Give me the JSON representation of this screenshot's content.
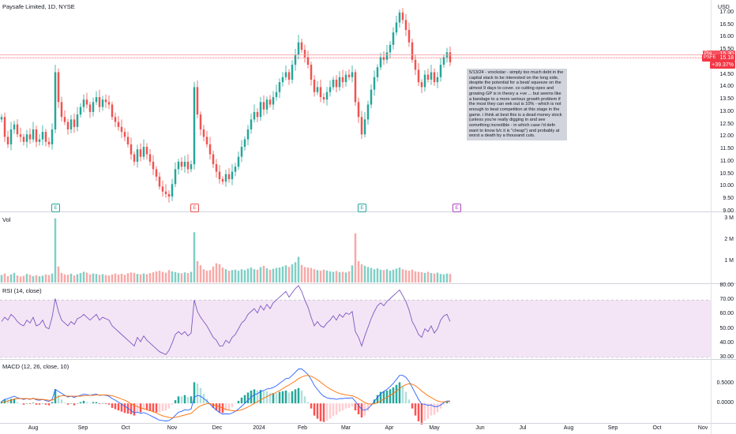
{
  "chart_data": [
    {
      "type": "candlestick",
      "title": "Paysafe Limited, 1D, NYSE",
      "currency": "USD",
      "ylim": [
        9.0,
        17.25
      ],
      "y_ticks": [
        "17.00",
        "16.50",
        "16.00",
        "15.50",
        "15.00",
        "14.50",
        "14.00",
        "13.50",
        "13.00",
        "12.50",
        "12.00",
        "11.50",
        "11.00",
        "10.50",
        "10.00",
        "9.50",
        "9.00"
      ],
      "x_ticks": [
        "Aug",
        "Sep",
        "Oct",
        "Nov",
        "Dec",
        "2024",
        "Feb",
        "Mar",
        "Apr",
        "May",
        "Jun",
        "Jul",
        "Aug",
        "Sep",
        "Oct",
        "Nov"
      ],
      "close": [
        12.8,
        12.0,
        11.7,
        12.3,
        12.5,
        12.1,
        12.0,
        11.8,
        12.1,
        11.9,
        12.3,
        11.8,
        11.9,
        12.2,
        11.8,
        11.7,
        12.3,
        14.6,
        13.4,
        12.8,
        12.6,
        12.3,
        12.7,
        12.4,
        12.9,
        13.2,
        13.5,
        13.3,
        13.0,
        13.4,
        13.6,
        13.2,
        13.5,
        13.4,
        13.3,
        12.8,
        12.6,
        12.4,
        12.2,
        12.0,
        11.7,
        11.3,
        11.0,
        11.5,
        11.2,
        11.6,
        11.3,
        11.0,
        10.7,
        10.4,
        10.0,
        9.8,
        9.7,
        9.6,
        10.1,
        10.7,
        11.0,
        10.8,
        11.0,
        10.7,
        10.9,
        14.0,
        12.9,
        12.3,
        12.0,
        11.7,
        11.3,
        10.9,
        10.6,
        10.3,
        10.2,
        10.5,
        10.3,
        10.6,
        10.8,
        11.2,
        11.6,
        11.9,
        12.3,
        12.7,
        13.0,
        12.8,
        13.4,
        13.1,
        13.5,
        13.3,
        13.6,
        13.8,
        14.2,
        14.4,
        14.6,
        14.3,
        14.9,
        15.3,
        15.8,
        15.5,
        15.2,
        14.9,
        14.3,
        13.8,
        14.0,
        13.6,
        13.5,
        13.8,
        14.0,
        14.3,
        14.0,
        14.4,
        14.2,
        14.5,
        14.4,
        14.6,
        13.4,
        12.8,
        12.1,
        12.7,
        13.3,
        13.9,
        14.4,
        14.8,
        15.2,
        15.1,
        15.4,
        15.7,
        16.2,
        16.6,
        17.0,
        16.7,
        16.3,
        15.8,
        15.1,
        14.7,
        14.2,
        14.0,
        14.5,
        14.3,
        14.6,
        14.2,
        14.4,
        14.9,
        15.2,
        15.4,
        15.0
      ],
      "last_price": "15.18",
      "last_price_ticker": "PSFE",
      "change_pct": "+39.37%",
      "pre_label": "Pre",
      "pre_price": "15.30",
      "earnings_markers": [
        17,
        61,
        114,
        144
      ]
    },
    {
      "type": "bar",
      "title": "Vol",
      "y_ticks": [
        "3 M",
        "2 M",
        "1 M"
      ],
      "ylim": [
        0,
        3.1
      ],
      "values_m": [
        0.35,
        0.42,
        0.3,
        0.38,
        0.45,
        0.33,
        0.28,
        0.31,
        0.4,
        0.36,
        0.3,
        0.34,
        0.29,
        0.32,
        0.38,
        0.35,
        0.42,
        3.0,
        0.75,
        0.45,
        0.38,
        0.36,
        0.41,
        0.33,
        0.39,
        0.44,
        0.5,
        0.46,
        0.38,
        0.42,
        0.4,
        0.36,
        0.39,
        0.35,
        0.33,
        0.38,
        0.42,
        0.37,
        0.41,
        0.36,
        0.43,
        0.47,
        0.45,
        0.4,
        0.38,
        0.42,
        0.39,
        0.44,
        0.48,
        0.52,
        0.55,
        0.5,
        0.46,
        0.58,
        0.52,
        0.49,
        0.45,
        0.43,
        0.47,
        0.44,
        0.5,
        2.35,
        1.0,
        0.8,
        0.62,
        0.55,
        0.58,
        0.75,
        0.9,
        0.85,
        0.7,
        0.62,
        0.55,
        0.58,
        0.6,
        0.55,
        0.62,
        0.58,
        0.65,
        0.7,
        0.62,
        0.6,
        0.72,
        0.78,
        0.66,
        0.6,
        0.64,
        0.68,
        0.7,
        0.75,
        0.8,
        0.73,
        0.85,
        0.95,
        1.2,
        0.82,
        0.72,
        0.7,
        0.68,
        0.62,
        0.58,
        0.55,
        0.6,
        0.56,
        0.52,
        0.5,
        0.54,
        0.48,
        0.5,
        0.47,
        0.52,
        0.8,
        2.3,
        1.0,
        0.85,
        0.78,
        0.72,
        0.68,
        0.62,
        0.66,
        0.6,
        0.58,
        0.62,
        0.55,
        0.6,
        0.65,
        0.7,
        0.62,
        0.58,
        0.55,
        0.6,
        0.52,
        0.5,
        0.48,
        0.45,
        0.5,
        0.44,
        0.42,
        0.46,
        0.4,
        0.38,
        0.42,
        0.4
      ]
    },
    {
      "type": "line",
      "title": "RSI (14, close)",
      "y_ticks": [
        "80.00",
        "70.00",
        "60.00",
        "50.00",
        "40.00",
        "30.00"
      ],
      "ylim": [
        30,
        80
      ],
      "band": [
        30,
        70
      ],
      "values": [
        55,
        58,
        56,
        60,
        58,
        55,
        53,
        52,
        56,
        54,
        58,
        52,
        53,
        56,
        51,
        50,
        58,
        71,
        62,
        56,
        54,
        52,
        55,
        53,
        57,
        58,
        60,
        58,
        56,
        58,
        60,
        56,
        58,
        57,
        56,
        52,
        50,
        48,
        46,
        44,
        42,
        40,
        38,
        44,
        41,
        45,
        42,
        40,
        38,
        36,
        34,
        33,
        32,
        35,
        40,
        46,
        48,
        46,
        48,
        45,
        47,
        70,
        62,
        58,
        55,
        52,
        48,
        44,
        42,
        38,
        38,
        42,
        40,
        44,
        46,
        50,
        54,
        56,
        60,
        62,
        64,
        61,
        66,
        63,
        67,
        64,
        68,
        70,
        72,
        74,
        76,
        72,
        75,
        78,
        80,
        76,
        70,
        65,
        58,
        52,
        55,
        52,
        51,
        54,
        56,
        59,
        56,
        60,
        58,
        61,
        60,
        62,
        48,
        44,
        38,
        45,
        51,
        57,
        62,
        66,
        68,
        66,
        69,
        71,
        73,
        75,
        77,
        73,
        69,
        63,
        55,
        51,
        46,
        44,
        50,
        48,
        52,
        47,
        50,
        56,
        59,
        60,
        55
      ],
      "line_color": "#7e57c2"
    },
    {
      "type": "line",
      "title": "MACD (12, 26, close, 10)",
      "y_ticks": [
        "0.5000",
        "0.0000"
      ],
      "ylim": [
        -0.45,
        1.05
      ],
      "macd": [
        0.05,
        0.1,
        0.12,
        0.15,
        0.18,
        0.14,
        0.12,
        0.1,
        0.12,
        0.1,
        0.13,
        0.09,
        0.08,
        0.1,
        0.07,
        0.05,
        0.1,
        0.35,
        0.3,
        0.25,
        0.2,
        0.16,
        0.18,
        0.15,
        0.18,
        0.2,
        0.23,
        0.22,
        0.2,
        0.22,
        0.23,
        0.2,
        0.21,
        0.2,
        0.18,
        0.12,
        0.08,
        0.03,
        -0.02,
        -0.07,
        -0.12,
        -0.18,
        -0.24,
        -0.22,
        -0.25,
        -0.23,
        -0.26,
        -0.3,
        -0.34,
        -0.38,
        -0.42,
        -0.43,
        -0.44,
        -0.43,
        -0.38,
        -0.3,
        -0.22,
        -0.2,
        -0.16,
        -0.17,
        -0.14,
        0.15,
        0.2,
        0.18,
        0.12,
        0.06,
        -0.02,
        -0.1,
        -0.17,
        -0.23,
        -0.27,
        -0.26,
        -0.27,
        -0.24,
        -0.2,
        -0.14,
        -0.07,
        0.0,
        0.08,
        0.15,
        0.22,
        0.24,
        0.3,
        0.32,
        0.36,
        0.37,
        0.4,
        0.44,
        0.5,
        0.56,
        0.62,
        0.63,
        0.7,
        0.78,
        0.86,
        0.86,
        0.8,
        0.72,
        0.6,
        0.45,
        0.35,
        0.25,
        0.18,
        0.14,
        0.12,
        0.12,
        0.1,
        0.12,
        0.12,
        0.13,
        0.13,
        0.14,
        0.05,
        -0.05,
        -0.15,
        -0.17,
        -0.13,
        -0.05,
        0.05,
        0.15,
        0.24,
        0.3,
        0.35,
        0.42,
        0.5,
        0.6,
        0.7,
        0.7,
        0.65,
        0.55,
        0.4,
        0.25,
        0.1,
        -0.02,
        -0.02,
        -0.05,
        -0.04,
        -0.08,
        -0.08,
        -0.04,
        0.02,
        0.06,
        0.06
      ],
      "signal": [
        0.02,
        0.04,
        0.06,
        0.08,
        0.11,
        0.12,
        0.12,
        0.12,
        0.12,
        0.11,
        0.12,
        0.11,
        0.1,
        0.1,
        0.09,
        0.08,
        0.08,
        0.13,
        0.17,
        0.19,
        0.19,
        0.18,
        0.18,
        0.18,
        0.18,
        0.18,
        0.19,
        0.2,
        0.2,
        0.2,
        0.21,
        0.21,
        0.21,
        0.21,
        0.2,
        0.19,
        0.17,
        0.14,
        0.11,
        0.08,
        0.04,
        -0.01,
        -0.05,
        -0.08,
        -0.11,
        -0.13,
        -0.16,
        -0.18,
        -0.21,
        -0.24,
        -0.28,
        -0.31,
        -0.33,
        -0.35,
        -0.36,
        -0.35,
        -0.33,
        -0.31,
        -0.29,
        -0.27,
        -0.25,
        -0.18,
        -0.11,
        -0.06,
        -0.03,
        -0.01,
        -0.01,
        -0.03,
        -0.06,
        -0.09,
        -0.12,
        -0.15,
        -0.17,
        -0.18,
        -0.19,
        -0.18,
        -0.16,
        -0.13,
        -0.09,
        -0.05,
        0.0,
        0.04,
        0.09,
        0.13,
        0.17,
        0.21,
        0.24,
        0.28,
        0.32,
        0.37,
        0.42,
        0.46,
        0.51,
        0.56,
        0.62,
        0.66,
        0.69,
        0.7,
        0.68,
        0.64,
        0.59,
        0.53,
        0.47,
        0.41,
        0.36,
        0.32,
        0.28,
        0.25,
        0.23,
        0.21,
        0.2,
        0.19,
        0.16,
        0.12,
        0.07,
        0.02,
        -0.01,
        -0.02,
        -0.01,
        0.02,
        0.06,
        0.11,
        0.15,
        0.2,
        0.25,
        0.31,
        0.37,
        0.43,
        0.47,
        0.49,
        0.48,
        0.44,
        0.38,
        0.31,
        0.25,
        0.19,
        0.15,
        0.1,
        0.06,
        0.04,
        0.04,
        0.04,
        0.05
      ],
      "macd_color": "#2962ff",
      "signal_color": "#ff6d00"
    }
  ],
  "note": "5/13/24 - vrockstar - simply too much debt in the capital stack to be interested on the long side, despite the potential for a beat/ squeeze on the almost 9 days to cover. co cutting opex and growing GP is in theory a +ve ... but seems like a bandage to a more serious growth problem if the most they can eek out is 10% - which is not enough to beat competition at this stage in the game. i think at best this is a dead money stock (unless you're really digging in and see something incredible - in which case i'd defn want to know b/c it is \"cheap\") and probably at worst a death by a thousand cuts.",
  "earnings_label": "E",
  "colors": {
    "up": "#26a69a",
    "down": "#ef5350",
    "rsi_band": "#f3e5f5",
    "last": "#f23645"
  }
}
